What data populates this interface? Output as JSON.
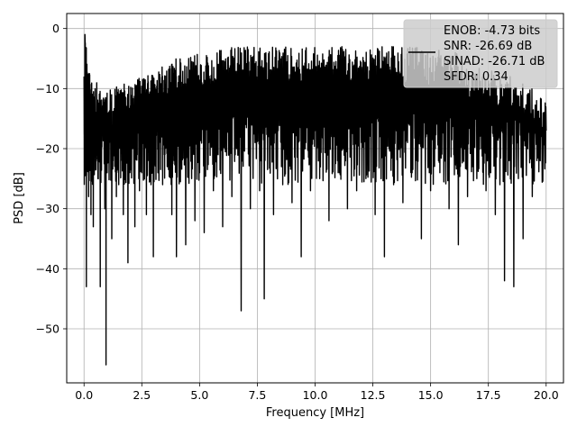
{
  "chart_data": {
    "type": "line",
    "title": "",
    "xlabel": "Frequency [MHz]",
    "ylabel": "PSD [dB]",
    "xlim": [
      -0.75,
      20.75
    ],
    "ylim": [
      -59,
      2.5
    ],
    "xticks": [
      0.0,
      2.5,
      5.0,
      7.5,
      10.0,
      12.5,
      15.0,
      17.5,
      20.0
    ],
    "xtick_labels": [
      "0.0",
      "2.5",
      "5.0",
      "7.5",
      "10.0",
      "12.5",
      "15.0",
      "17.5",
      "20.0"
    ],
    "yticks": [
      0,
      -10,
      -20,
      -30,
      -40,
      -50
    ],
    "ytick_labels": [
      "0",
      "−10",
      "−20",
      "−30",
      "−40",
      "−50"
    ],
    "grid": true,
    "legend_position": "top-right",
    "legend_entries": [
      "ENOB: -4.73 bits",
      "SNR: -26.69 dB",
      "SINAD: -26.71 dB",
      "SFDR: 0.34"
    ],
    "series": [
      {
        "color": "#000000",
        "x": [
          0.0,
          0.04,
          0.1,
          0.15,
          0.2,
          0.25,
          0.3,
          0.35,
          0.4,
          0.5,
          0.6,
          0.7,
          0.8,
          0.9,
          0.95,
          1.0,
          1.1,
          1.2,
          1.3,
          1.4,
          1.5,
          1.6,
          1.7,
          1.8,
          1.9,
          2.0,
          2.1,
          2.2,
          2.3,
          2.4,
          2.5,
          2.6,
          2.7,
          2.8,
          2.9,
          3.0,
          3.1,
          3.2,
          3.3,
          3.4,
          3.5,
          3.6,
          3.7,
          3.8,
          3.9,
          4.0,
          4.2,
          4.4,
          4.6,
          4.8,
          5.0,
          5.2,
          5.4,
          5.6,
          5.8,
          6.0,
          6.2,
          6.4,
          6.6,
          6.8,
          7.0,
          7.2,
          7.4,
          7.6,
          7.8,
          8.0,
          8.2,
          8.4,
          8.6,
          8.8,
          9.0,
          9.2,
          9.4,
          9.6,
          9.8,
          10.0,
          10.2,
          10.4,
          10.6,
          10.8,
          11.0,
          11.2,
          11.4,
          11.6,
          11.8,
          12.0,
          12.2,
          12.4,
          12.6,
          12.8,
          13.0,
          13.2,
          13.4,
          13.6,
          13.8,
          14.0,
          14.2,
          14.4,
          14.6,
          14.8,
          15.0,
          15.2,
          15.4,
          15.6,
          15.8,
          16.0,
          16.2,
          16.4,
          16.6,
          16.8,
          17.0,
          17.2,
          17.4,
          17.6,
          17.8,
          18.0,
          18.2,
          18.4,
          18.6,
          18.8,
          19.0,
          19.2,
          19.4,
          19.6,
          19.8,
          20.0
        ],
        "y": [
          -8,
          -1,
          -43,
          -22,
          -28,
          -18,
          -31,
          -15,
          -33,
          -20,
          -25,
          -43,
          -17,
          -30,
          -56,
          -24,
          -19,
          -35,
          -20,
          -28,
          -26,
          -22,
          -31,
          -18,
          -39,
          -23,
          -20,
          -33,
          -21,
          -27,
          -24,
          -19,
          -31,
          -22,
          -26,
          -38,
          -20,
          -24,
          -19,
          -26,
          -21,
          -23,
          -18,
          -31,
          -22,
          -38,
          -20,
          -36,
          -18,
          -32,
          -24,
          -34,
          -19,
          -27,
          -21,
          -33,
          -17,
          -28,
          -20,
          -47,
          -16,
          -30,
          -19,
          -27,
          -45,
          -18,
          -31,
          -17,
          -26,
          -21,
          -29,
          -16,
          -38,
          -19,
          -27,
          -17,
          -25,
          -15,
          -32,
          -18,
          -24,
          -20,
          -30,
          -17,
          -27,
          -19,
          -25,
          -16,
          -31,
          -18,
          -38,
          -20,
          -26,
          -17,
          -29,
          -19,
          -24,
          -22,
          -35,
          -18,
          -27,
          -20,
          -24,
          -17,
          -30,
          -21,
          -36,
          -19,
          -28,
          -23,
          -25,
          -20,
          -27,
          -24,
          -31,
          -26,
          -42,
          -22,
          -43,
          -25,
          -35,
          -20,
          -28,
          -22,
          -18,
          -17
        ],
        "envelope_upper": [
          -8,
          -1,
          -5,
          -7,
          -6,
          -8,
          -9,
          -8,
          -10,
          -9,
          -9,
          -10,
          -11,
          -10,
          -10,
          -12,
          -10,
          -11,
          -10,
          -9,
          -10,
          -10,
          -9,
          -10,
          -9,
          -9,
          -9,
          -9,
          -8,
          -8,
          -8,
          -8,
          -7,
          -8,
          -7,
          -7,
          -6,
          -7,
          -6,
          -6,
          -6,
          -6,
          -5,
          -5,
          -5,
          -5,
          -5,
          -4,
          -4,
          -4,
          -4,
          -4,
          -4,
          -4,
          -3,
          -4,
          -3,
          -3,
          -3,
          -3,
          -3,
          -3,
          -3,
          -3,
          -3,
          -3,
          -3,
          -3,
          -3,
          -3,
          -3,
          -3,
          -3,
          -3,
          -3,
          -3,
          -3,
          -3,
          -3,
          -3,
          -3,
          -3,
          -3,
          -3,
          -3,
          -3,
          -3,
          -3,
          -3,
          -3,
          -3,
          -3,
          -3,
          -3,
          -4,
          -3,
          -3,
          -3,
          -3,
          -4,
          -3,
          -3,
          -4,
          -4,
          -4,
          -4,
          -5,
          -5,
          -6,
          -6,
          -6,
          -6,
          -7,
          -7,
          -8,
          -8,
          -8,
          -8,
          -9,
          -9,
          -10,
          -10,
          -11,
          -11,
          -12,
          -12
        ]
      }
    ]
  }
}
